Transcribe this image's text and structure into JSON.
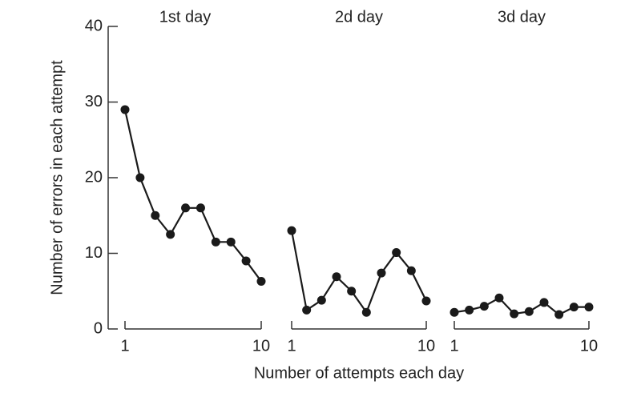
{
  "chart_data": [
    {
      "type": "line",
      "title": "1st day",
      "ylabel": "Number of errors in each attempt",
      "xlabel": "Number of attempts each day",
      "x": [
        1,
        2,
        3,
        4,
        5,
        6,
        7,
        8,
        9,
        10
      ],
      "values": [
        29,
        20,
        15,
        12.5,
        16,
        16,
        11.5,
        11.5,
        9,
        6.3
      ],
      "xlim": [
        1,
        10
      ],
      "xticks": [
        1,
        10
      ],
      "ylim": [
        0,
        40
      ],
      "yticks": [
        0,
        10,
        20,
        30,
        40
      ],
      "color": "#1a1a1a"
    },
    {
      "type": "line",
      "title": "2d day",
      "x": [
        1,
        2,
        3,
        4,
        5,
        6,
        7,
        8,
        9,
        10
      ],
      "values": [
        13,
        2.5,
        3.8,
        6.9,
        5,
        2.2,
        7.4,
        10.1,
        7.7,
        3.7
      ],
      "xlim": [
        1,
        10
      ],
      "xticks": [
        1,
        10
      ],
      "ylim": [
        0,
        40
      ],
      "color": "#1a1a1a"
    },
    {
      "type": "line",
      "title": "3d day",
      "x": [
        1,
        2,
        3,
        4,
        5,
        6,
        7,
        8,
        9,
        10
      ],
      "values": [
        2.2,
        2.5,
        3,
        4.1,
        2,
        2.3,
        3.5,
        1.9,
        2.9,
        2.9
      ],
      "xlim": [
        1,
        10
      ],
      "xticks": [
        1,
        10
      ],
      "ylim": [
        0,
        40
      ],
      "color": "#1a1a1a"
    }
  ]
}
